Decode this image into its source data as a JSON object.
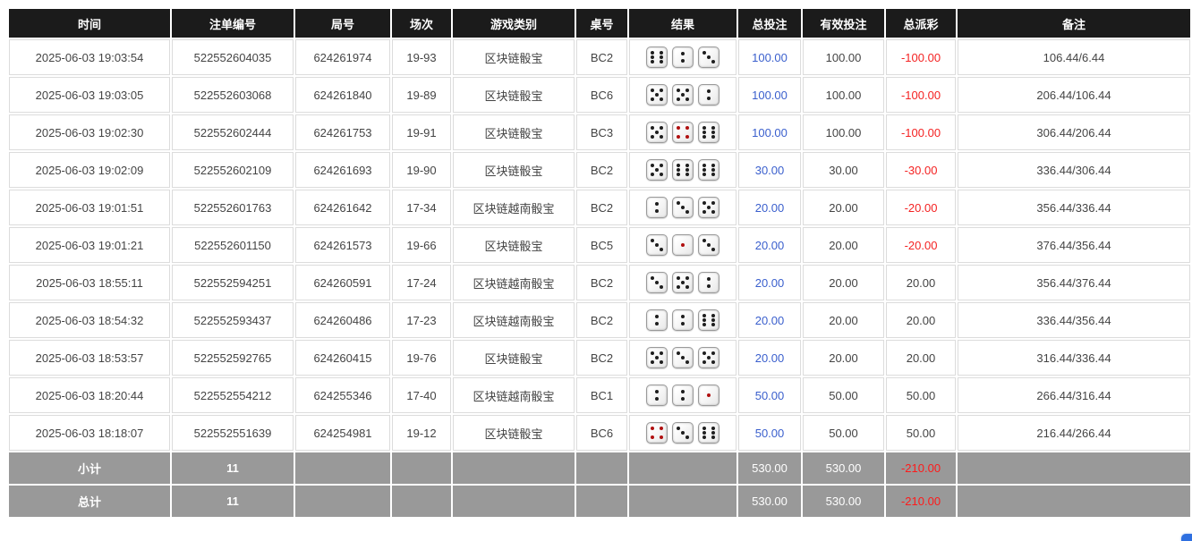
{
  "colors": {
    "header_bg": "#1b1b1b",
    "footer_bg": "#999999",
    "bet_blue": "#3a5fcd",
    "negative_red": "#f42222",
    "dice_red_dot": "#b01010"
  },
  "table": {
    "headers": [
      {
        "key": "time",
        "label": "时间"
      },
      {
        "key": "bet-id",
        "label": "注单编号"
      },
      {
        "key": "round-id",
        "label": "局号"
      },
      {
        "key": "session",
        "label": "场次"
      },
      {
        "key": "game-type",
        "label": "游戏类别"
      },
      {
        "key": "table-no",
        "label": "桌号"
      },
      {
        "key": "result",
        "label": "结果"
      },
      {
        "key": "total-bet",
        "label": "总投注"
      },
      {
        "key": "valid-bet",
        "label": "有效投注"
      },
      {
        "key": "total-payout",
        "label": "总派彩"
      },
      {
        "key": "remark",
        "label": "备注"
      }
    ],
    "rows": [
      {
        "time": "2025-06-03 19:03:54",
        "bet_id": "522552604035",
        "round_id": "624261974",
        "session": "19-93",
        "game": "区块链骰宝",
        "table_no": "BC2",
        "dice": [
          6,
          2,
          3
        ],
        "total_bet": "100.00",
        "valid_bet": "100.00",
        "payout": "-100.00",
        "remark": "106.44/6.44"
      },
      {
        "time": "2025-06-03 19:03:05",
        "bet_id": "522552603068",
        "round_id": "624261840",
        "session": "19-89",
        "game": "区块链骰宝",
        "table_no": "BC6",
        "dice": [
          5,
          5,
          2
        ],
        "total_bet": "100.00",
        "valid_bet": "100.00",
        "payout": "-100.00",
        "remark": "206.44/106.44"
      },
      {
        "time": "2025-06-03 19:02:30",
        "bet_id": "522552602444",
        "round_id": "624261753",
        "session": "19-91",
        "game": "区块链骰宝",
        "table_no": "BC3",
        "dice": [
          5,
          4,
          6
        ],
        "total_bet": "100.00",
        "valid_bet": "100.00",
        "payout": "-100.00",
        "remark": "306.44/206.44"
      },
      {
        "time": "2025-06-03 19:02:09",
        "bet_id": "522552602109",
        "round_id": "624261693",
        "session": "19-90",
        "game": "区块链骰宝",
        "table_no": "BC2",
        "dice": [
          5,
          6,
          6
        ],
        "total_bet": "30.00",
        "valid_bet": "30.00",
        "payout": "-30.00",
        "remark": "336.44/306.44"
      },
      {
        "time": "2025-06-03 19:01:51",
        "bet_id": "522552601763",
        "round_id": "624261642",
        "session": "17-34",
        "game": "区块链越南骰宝",
        "table_no": "BC2",
        "dice": [
          2,
          3,
          5
        ],
        "total_bet": "20.00",
        "valid_bet": "20.00",
        "payout": "-20.00",
        "remark": "356.44/336.44"
      },
      {
        "time": "2025-06-03 19:01:21",
        "bet_id": "522552601150",
        "round_id": "624261573",
        "session": "19-66",
        "game": "区块链骰宝",
        "table_no": "BC5",
        "dice": [
          3,
          1,
          3
        ],
        "total_bet": "20.00",
        "valid_bet": "20.00",
        "payout": "-20.00",
        "remark": "376.44/356.44"
      },
      {
        "time": "2025-06-03 18:55:11",
        "bet_id": "522552594251",
        "round_id": "624260591",
        "session": "17-24",
        "game": "区块链越南骰宝",
        "table_no": "BC2",
        "dice": [
          3,
          5,
          2
        ],
        "total_bet": "20.00",
        "valid_bet": "20.00",
        "payout": "20.00",
        "remark": "356.44/376.44"
      },
      {
        "time": "2025-06-03 18:54:32",
        "bet_id": "522552593437",
        "round_id": "624260486",
        "session": "17-23",
        "game": "区块链越南骰宝",
        "table_no": "BC2",
        "dice": [
          2,
          2,
          6
        ],
        "total_bet": "20.00",
        "valid_bet": "20.00",
        "payout": "20.00",
        "remark": "336.44/356.44"
      },
      {
        "time": "2025-06-03 18:53:57",
        "bet_id": "522552592765",
        "round_id": "624260415",
        "session": "19-76",
        "game": "区块链骰宝",
        "table_no": "BC2",
        "dice": [
          5,
          3,
          5
        ],
        "total_bet": "20.00",
        "valid_bet": "20.00",
        "payout": "20.00",
        "remark": "316.44/336.44"
      },
      {
        "time": "2025-06-03 18:20:44",
        "bet_id": "522552554212",
        "round_id": "624255346",
        "session": "17-40",
        "game": "区块链越南骰宝",
        "table_no": "BC1",
        "dice": [
          2,
          2,
          1
        ],
        "total_bet": "50.00",
        "valid_bet": "50.00",
        "payout": "50.00",
        "remark": "266.44/316.44"
      },
      {
        "time": "2025-06-03 18:18:07",
        "bet_id": "522552551639",
        "round_id": "624254981",
        "session": "19-12",
        "game": "区块链骰宝",
        "table_no": "BC6",
        "dice": [
          4,
          3,
          6
        ],
        "total_bet": "50.00",
        "valid_bet": "50.00",
        "payout": "50.00",
        "remark": "216.44/266.44"
      }
    ],
    "footer": [
      {
        "label": "小计",
        "count": "11",
        "total_bet": "530.00",
        "valid_bet": "530.00",
        "payout": "-210.00"
      },
      {
        "label": "总计",
        "count": "11",
        "total_bet": "530.00",
        "valid_bet": "530.00",
        "payout": "-210.00"
      }
    ]
  }
}
